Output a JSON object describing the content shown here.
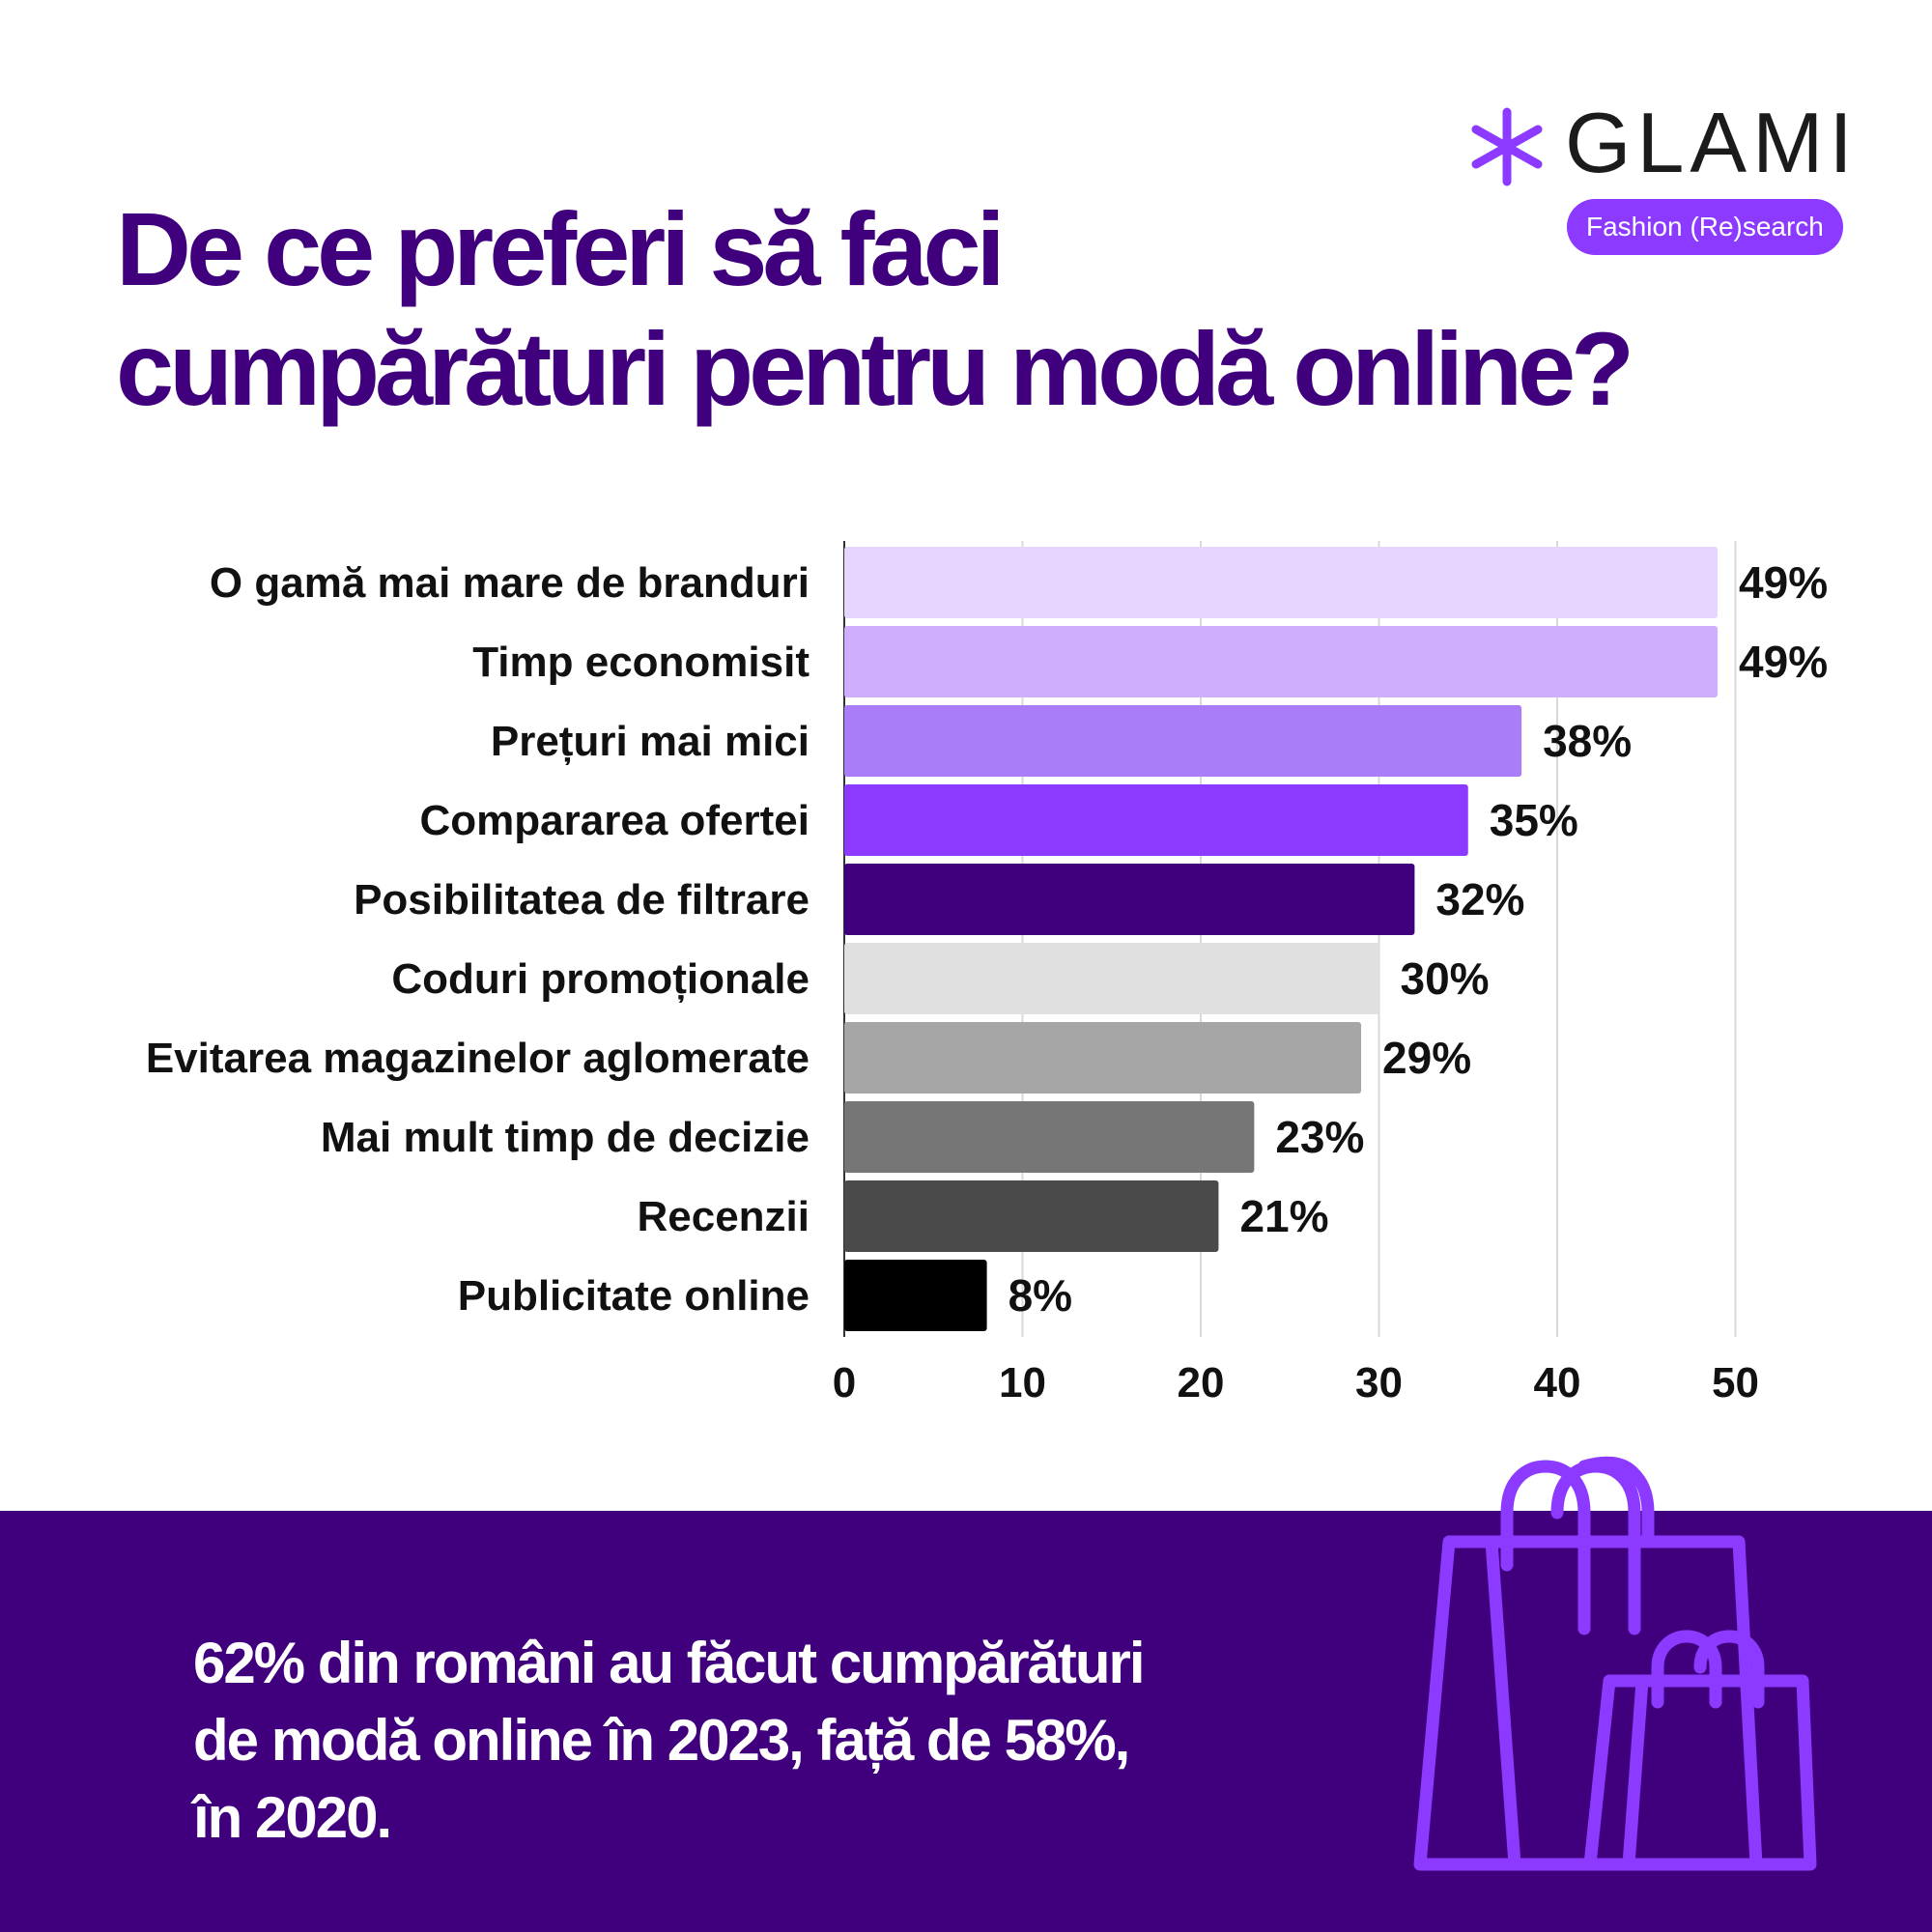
{
  "title": {
    "line1": "De ce preferi să faci",
    "line2": "cumpărături pentru modă online?"
  },
  "logo": {
    "wordmark": "GLAMI",
    "tagline": "Fashion (Re)search",
    "icon": "asterisk-icon",
    "color": "#8c3aff"
  },
  "chart_data": {
    "type": "bar",
    "orientation": "horizontal",
    "categories": [
      "O gamă mai mare de branduri",
      "Timp economisit",
      "Prețuri mai mici",
      "Compararea ofertei",
      "Posibilitatea de filtrare",
      "Coduri promoționale",
      "Evitarea magazinelor aglomerate",
      "Mai mult timp de decizie",
      "Recenzii",
      "Publicitate online"
    ],
    "values": [
      49,
      49,
      38,
      35,
      32,
      30,
      29,
      23,
      21,
      8
    ],
    "value_labels": [
      "49%",
      "49%",
      "38%",
      "35%",
      "32%",
      "30%",
      "29%",
      "23%",
      "21%",
      "8%"
    ],
    "colors": [
      "#e6d6ff",
      "#cfadff",
      "#a97cf8",
      "#8c3aff",
      "#40007d",
      "#e0e0e0",
      "#a6a6a6",
      "#767676",
      "#4a4a4a",
      "#000000"
    ],
    "xlim": [
      0,
      50
    ],
    "xticks": [
      0,
      10,
      20,
      30,
      40,
      50
    ],
    "xtick_labels": [
      "0",
      "10",
      "20",
      "30",
      "40",
      "50"
    ],
    "grid": "vertical",
    "legend": "none",
    "title": "De ce preferi să faci cumpărături pentru modă online?",
    "xlabel": "",
    "ylabel": ""
  },
  "footer": {
    "line1": "62% din români au făcut cumpărături",
    "line2": "de modă online în 2023, față de 58%,",
    "line3": "în 2020.",
    "background": "#40007d",
    "icon": "shopping-bags-icon",
    "icon_color": "#8c3aff"
  }
}
